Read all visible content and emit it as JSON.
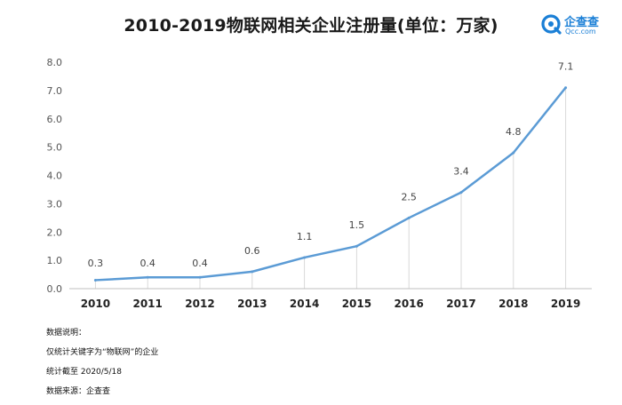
{
  "header": {
    "title": "2010-2019物联网相关企业注册量(单位：万家)",
    "logo_name": "企查查",
    "logo_domain": "Qcc.com"
  },
  "notes": {
    "heading": "数据说明：",
    "line1": "仅统计关键字为“物联网”的企业",
    "line2": "统计截至 2020/5/18",
    "line3": "数据来源：企查查"
  },
  "colors": {
    "line": "#5b9bd5",
    "grid": "#d9d9d9",
    "brand": "#1a7fd6"
  },
  "chart_data": {
    "type": "line",
    "title": "2010-2019物联网相关企业注册量(单位：万家)",
    "categories": [
      "2010",
      "2011",
      "2012",
      "2013",
      "2014",
      "2015",
      "2016",
      "2017",
      "2018",
      "2019"
    ],
    "values": [
      0.3,
      0.4,
      0.4,
      0.6,
      1.1,
      1.5,
      2.5,
      3.4,
      4.8,
      7.1
    ],
    "labels": [
      "0.3",
      "0.4",
      "0.4",
      "0.6",
      "1.1",
      "1.5",
      "2.5",
      "3.4",
      "4.8",
      "7.1"
    ],
    "yticks": [
      "0.0",
      "1.0",
      "2.0",
      "3.0",
      "4.0",
      "5.0",
      "6.0",
      "7.0",
      "8.0"
    ],
    "ylim": [
      0,
      8
    ],
    "grid": "vertical",
    "legend": "none",
    "xlabel": "",
    "ylabel": ""
  }
}
